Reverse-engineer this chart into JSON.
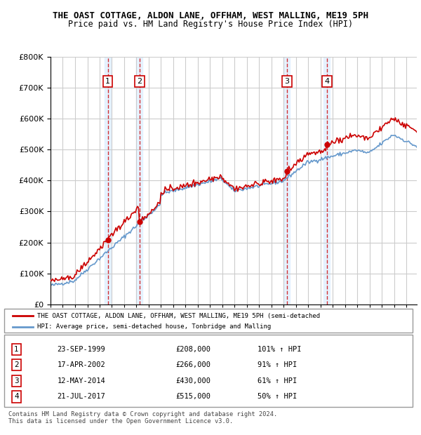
{
  "title": "THE OAST COTTAGE, ALDON LANE, OFFHAM, WEST MALLING, ME19 5PH",
  "subtitle": "Price paid vs. HM Land Registry's House Price Index (HPI)",
  "hpi_color": "#6699cc",
  "price_color": "#cc0000",
  "marker_color": "#cc0000",
  "background_color": "#ffffff",
  "grid_color": "#cccccc",
  "highlight_color": "#ddeeff",
  "ylabel": "",
  "ylim": [
    0,
    800000
  ],
  "yticks": [
    0,
    100000,
    200000,
    300000,
    400000,
    500000,
    600000,
    700000,
    800000
  ],
  "ytick_labels": [
    "£0",
    "£100K",
    "£200K",
    "£300K",
    "£400K",
    "£500K",
    "£600K",
    "£700K",
    "£800K"
  ],
  "purchases": [
    {
      "date": "1999-09-23",
      "price": 208000,
      "label": "1",
      "pct": "101%↑ HPI"
    },
    {
      "date": "2002-04-17",
      "price": 266000,
      "label": "2",
      "pct": "91%↑ HPI"
    },
    {
      "date": "2014-05-12",
      "price": 430000,
      "label": "3",
      "pct": "61%↑ HPI"
    },
    {
      "date": "2017-07-21",
      "price": 515000,
      "label": "4",
      "pct": "50%↑ HPI"
    }
  ],
  "table_rows": [
    {
      "num": "1",
      "date": "23-SEP-1999",
      "price": "£208,000",
      "pct": "101% ↑ HPI"
    },
    {
      "num": "2",
      "date": "17-APR-2002",
      "price": "£266,000",
      "pct": "91% ↑ HPI"
    },
    {
      "num": "3",
      "date": "12-MAY-2014",
      "price": "£430,000",
      "pct": "61% ↑ HPI"
    },
    {
      "num": "4",
      "date": "21-JUL-2017",
      "price": "£515,000",
      "pct": "50% ↑ HPI"
    }
  ],
  "legend_line1": "THE OAST COTTAGE, ALDON LANE, OFFHAM, WEST MALLING, ME19 5PH (semi-detached",
  "legend_line2": "HPI: Average price, semi-detached house, Tonbridge and Malling",
  "footer": "Contains HM Land Registry data © Crown copyright and database right 2024.\nThis data is licensed under the Open Government Licence v3.0.",
  "xstart_year": 1995,
  "xend_year": 2024
}
